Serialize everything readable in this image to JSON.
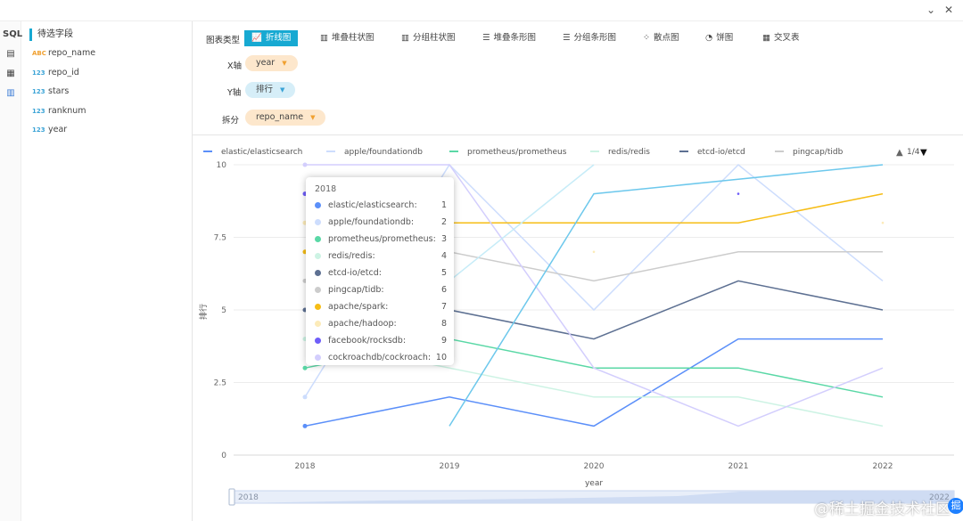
{
  "window": {
    "minimize_glyph": "⌄",
    "close_glyph": "✕"
  },
  "sidebar_icons": [
    {
      "name": "sql-icon",
      "label": "SQL"
    },
    {
      "name": "report-icon",
      "label": "▤"
    },
    {
      "name": "table-icon",
      "label": "▦"
    },
    {
      "name": "chart-icon",
      "label": "▥"
    }
  ],
  "field_panel": {
    "title": "待选字段",
    "fields": [
      {
        "type": "ABC",
        "name": "repo_name"
      },
      {
        "type": "123",
        "name": "repo_id"
      },
      {
        "type": "123",
        "name": "stars"
      },
      {
        "type": "123",
        "name": "ranknum"
      },
      {
        "type": "123",
        "name": "year"
      }
    ]
  },
  "config": {
    "chart_type_label": "图表类型",
    "chart_types": [
      {
        "icon": "📈",
        "label": "折线图",
        "active": true
      },
      {
        "icon": "▥",
        "label": "堆叠柱状图"
      },
      {
        "icon": "▥",
        "label": "分组柱状图"
      },
      {
        "icon": "☰",
        "label": "堆叠条形图"
      },
      {
        "icon": "☰",
        "label": "分组条形图"
      },
      {
        "icon": "⁘",
        "label": "散点图"
      },
      {
        "icon": "◔",
        "label": "饼图"
      },
      {
        "icon": "▦",
        "label": "交叉表"
      }
    ],
    "x_axis_label": "X轴",
    "x_axis_value": "year",
    "y_axis_label": "Y轴",
    "y_axis_value": "排行",
    "split_label": "拆分",
    "split_value": "repo_name"
  },
  "legend": {
    "items": [
      "elastic/elasticsearch",
      "apple/foundationdb",
      "prometheus/prometheus",
      "redis/redis",
      "etcd-io/etcd",
      "pingcap/tidb"
    ],
    "page": "1/4",
    "prev_glyph": "▲",
    "next_glyph": "▼"
  },
  "tooltip": {
    "title": "2018",
    "rows": [
      {
        "name": "elastic/elasticsearch:",
        "value": "1",
        "color": "#5b8ff9"
      },
      {
        "name": "apple/foundationdb:",
        "value": "2",
        "color": "#cdddfd"
      },
      {
        "name": "prometheus/prometheus:",
        "value": "3",
        "color": "#5ad8a6"
      },
      {
        "name": "redis/redis:",
        "value": "4",
        "color": "#cdf3e4"
      },
      {
        "name": "etcd-io/etcd:",
        "value": "5",
        "color": "#5d7092"
      },
      {
        "name": "pingcap/tidb:",
        "value": "6",
        "color": "#cccccc"
      },
      {
        "name": "apache/spark:",
        "value": "7",
        "color": "#f6bd16"
      },
      {
        "name": "apache/hadoop:",
        "value": "8",
        "color": "#fcebb9"
      },
      {
        "name": "facebook/rocksdb:",
        "value": "9",
        "color": "#6f5ef9"
      },
      {
        "name": "cockroachdb/cockroach:",
        "value": "10",
        "color": "#d3cefd"
      }
    ]
  },
  "slider": {
    "start_label": "2018",
    "end_label": "2022"
  },
  "watermark": {
    "text": "@稀土掘金技术社区",
    "logo": "掘"
  },
  "chart_data": {
    "type": "line",
    "xlabel": "year",
    "ylabel": "排行",
    "categories": [
      "2018",
      "2019",
      "2020",
      "2021",
      "2022"
    ],
    "ylim": [
      0,
      10
    ],
    "yticks": [
      0,
      2.5,
      5,
      7.5,
      10
    ],
    "grid": true,
    "legend_position": "top",
    "series": [
      {
        "name": "elastic/elasticsearch",
        "color": "#5b8ff9",
        "values": [
          1,
          2,
          1,
          4,
          4
        ]
      },
      {
        "name": "apple/foundationdb",
        "color": "#cdddfd",
        "values": [
          2,
          10,
          5,
          10,
          6
        ]
      },
      {
        "name": "prometheus/prometheus",
        "color": "#5ad8a6",
        "values": [
          3,
          4,
          3,
          3,
          2
        ]
      },
      {
        "name": "redis/redis",
        "color": "#cdf3e4",
        "values": [
          4,
          3,
          2,
          2,
          1
        ]
      },
      {
        "name": "etcd-io/etcd",
        "color": "#5d7092",
        "values": [
          5,
          5,
          4,
          6,
          5
        ]
      },
      {
        "name": "pingcap/tidb",
        "color": "#cccccc",
        "values": [
          6,
          7,
          6,
          7,
          7
        ]
      },
      {
        "name": "apache/spark",
        "color": "#f6bd16",
        "values": [
          7,
          8,
          8,
          8,
          9
        ]
      },
      {
        "name": "apache/hadoop",
        "color": "#fcebb9",
        "values": [
          8,
          null,
          7,
          null,
          8
        ]
      },
      {
        "name": "facebook/rocksdb",
        "color": "#6f5ef9",
        "values": [
          9,
          null,
          null,
          9,
          null
        ]
      },
      {
        "name": "cockroachdb/cockroach",
        "color": "#d3cefd",
        "values": [
          10,
          10,
          3,
          1,
          3
        ]
      },
      {
        "name": "",
        "color": "#6dc8ec",
        "values": [
          null,
          1,
          9,
          9.5,
          10
        ]
      },
      {
        "name": "",
        "color": "#c6ecf8",
        "values": [
          null,
          6,
          10,
          null,
          null
        ]
      }
    ]
  }
}
